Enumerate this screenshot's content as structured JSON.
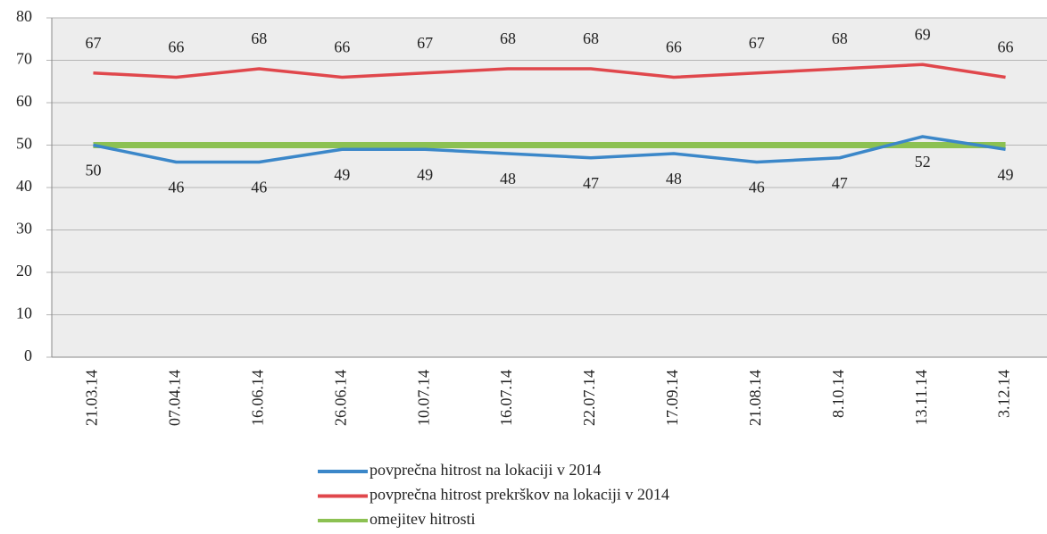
{
  "chart_data": {
    "type": "line",
    "categories": [
      "21.03.14",
      "07.04.14",
      "16.06.14",
      "26.06.14",
      "10.07.14",
      "16.07.14",
      "22.07.14",
      "17.09.14",
      "21.08.14",
      "8.10.14",
      "13.11.14",
      "3.12.14"
    ],
    "series": [
      {
        "name": "povprečna hitrost na lokaciji v 2014",
        "color": "#3b87c9",
        "show_labels": true,
        "values": [
          50,
          46,
          46,
          49,
          49,
          48,
          47,
          48,
          46,
          47,
          52,
          49
        ]
      },
      {
        "name": "povprečna hitrost prekrškov na lokaciji v 2014",
        "color": "#e0474c",
        "show_labels": true,
        "values": [
          67,
          66,
          68,
          66,
          67,
          68,
          68,
          66,
          67,
          68,
          69,
          66
        ]
      },
      {
        "name": "omejitev hitrosti",
        "color": "#8cc152",
        "show_labels": false,
        "values": [
          50,
          50,
          50,
          50,
          50,
          50,
          50,
          50,
          50,
          50,
          50,
          50
        ]
      }
    ],
    "ylim": [
      0,
      80
    ],
    "yticks": [
      0,
      10,
      20,
      30,
      40,
      50,
      60,
      70,
      80
    ],
    "grid": true
  }
}
